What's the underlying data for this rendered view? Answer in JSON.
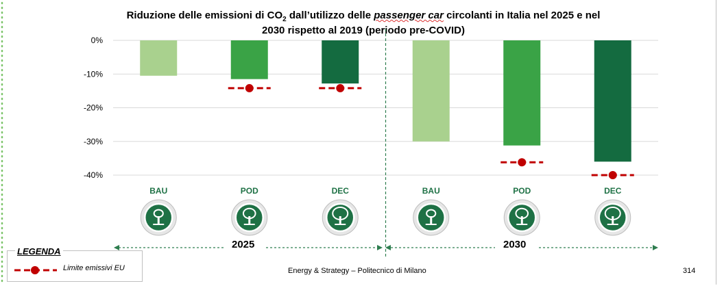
{
  "header": {
    "title_part1": "Riduzione delle emissioni di CO",
    "title_sub": "2",
    "title_part2": " dall’utilizzo delle ",
    "title_italic": "passenger car",
    "title_part3": " circolanti in Italia nel 2025 e nel",
    "title_line2": "2030 rispetto al 2019 (periodo pre-COVID)"
  },
  "chart_data": {
    "type": "bar",
    "title": "Riduzione delle emissioni di CO2 dall’utilizzo delle passenger car circolanti in Italia nel 2025 e nel 2030 rispetto al 2019 (periodo pre-COVID)",
    "categories": [
      "BAU",
      "POD",
      "DEC",
      "BAU",
      "POD",
      "DEC"
    ],
    "groups": [
      "2025",
      "2025",
      "2025",
      "2030",
      "2030",
      "2030"
    ],
    "values": [
      -10.5,
      -11.5,
      -12.8,
      -30.0,
      -31.2,
      -36.0
    ],
    "bar_colors": [
      "#a9d18e",
      "#3aa346",
      "#146b40",
      "#a9d18e",
      "#3aa346",
      "#146b40"
    ],
    "eu_limit": [
      null,
      -14.2,
      -14.2,
      null,
      -36.2,
      -40.0
    ],
    "eu_limit_label": "Limite emissivi EU",
    "eu_limit_color": "#c00000",
    "yticks": [
      0,
      -10,
      -20,
      -30,
      -40
    ],
    "ytick_labels": [
      "0%",
      "-10%",
      "-20%",
      "-30%",
      "-40%"
    ],
    "ylim": [
      -40,
      0
    ],
    "grid": true,
    "legend_placement": "bottom-left"
  },
  "periods": [
    {
      "label": "2025"
    },
    {
      "label": "2030"
    }
  ],
  "legend": {
    "title": "LEGENDA",
    "item": "Limite emissivi EU"
  },
  "footer": {
    "source": "Energy & Strategy – Politecnico di Milano",
    "page": "314"
  },
  "icons": [
    "tree-icon",
    "tree-icon",
    "tree-icon",
    "tree-icon",
    "tree-icon",
    "tree-icon"
  ],
  "colors": {
    "accent_dark": "#1e7145",
    "period_arrow": "#2e7d4f",
    "grid": "#d9d9d9"
  }
}
